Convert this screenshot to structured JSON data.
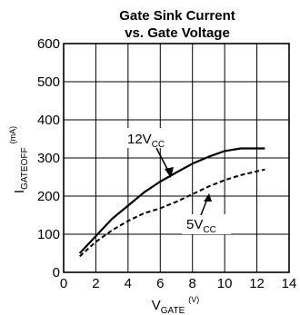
{
  "chart_data": {
    "type": "line",
    "title_line1": "Gate Sink Current",
    "title_line2": "vs. Gate Voltage",
    "ylabel": {
      "main": "I",
      "sub": "GATEOFF",
      "unit": "(mA)"
    },
    "xlabel": {
      "main": "V",
      "sub": "GATE",
      "unit": "(V)"
    },
    "xlim": [
      0,
      14
    ],
    "ylim": [
      0,
      600
    ],
    "xticks": [
      0,
      2,
      4,
      6,
      8,
      10,
      12,
      14
    ],
    "yticks": [
      0,
      100,
      200,
      300,
      400,
      500,
      600
    ],
    "grid": true,
    "series": [
      {
        "label_main": "12V",
        "label_sub": "CC",
        "style": "solid",
        "x": [
          1,
          2,
          3,
          4,
          5,
          6,
          7,
          8,
          9,
          10,
          11,
          12,
          12.5
        ],
        "y": [
          50,
          95,
          140,
          175,
          210,
          238,
          262,
          285,
          303,
          318,
          325,
          325,
          325
        ]
      },
      {
        "label_main": "5V",
        "label_sub": "CC",
        "style": "dashed",
        "x": [
          1,
          2,
          3,
          4,
          5,
          6,
          7,
          8,
          9,
          10,
          11,
          12,
          12.5
        ],
        "y": [
          42,
          80,
          110,
          135,
          155,
          168,
          185,
          205,
          225,
          242,
          255,
          265,
          270
        ]
      }
    ]
  }
}
